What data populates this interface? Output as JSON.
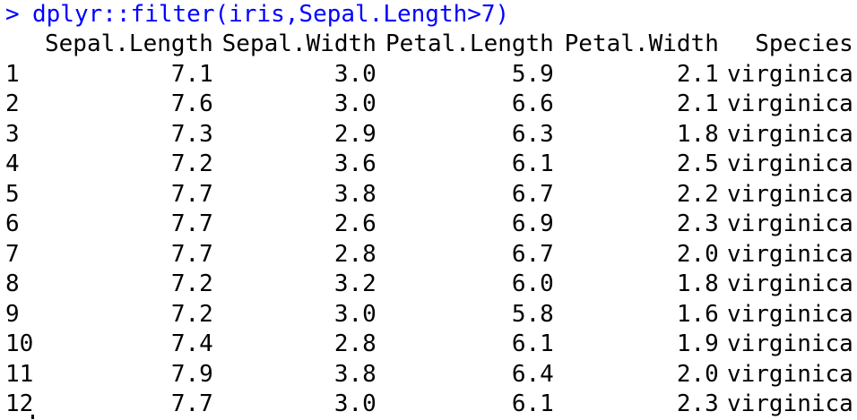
{
  "console": {
    "prompt": ">",
    "command": "dplyr::filter(iris,Sepal.Length>7)",
    "command_color": "#0000ff"
  },
  "table": {
    "headers": [
      "",
      "Sepal.Length",
      "Sepal.Width",
      "Petal.Length",
      "Petal.Width",
      "Species"
    ],
    "rows": [
      [
        "1",
        "7.1",
        "3.0",
        "5.9",
        "2.1",
        "virginica"
      ],
      [
        "2",
        "7.6",
        "3.0",
        "6.6",
        "2.1",
        "virginica"
      ],
      [
        "3",
        "7.3",
        "2.9",
        "6.3",
        "1.8",
        "virginica"
      ],
      [
        "4",
        "7.2",
        "3.6",
        "6.1",
        "2.5",
        "virginica"
      ],
      [
        "5",
        "7.7",
        "3.8",
        "6.7",
        "2.2",
        "virginica"
      ],
      [
        "6",
        "7.7",
        "2.6",
        "6.9",
        "2.3",
        "virginica"
      ],
      [
        "7",
        "7.7",
        "2.8",
        "6.7",
        "2.0",
        "virginica"
      ],
      [
        "8",
        "7.2",
        "3.2",
        "6.0",
        "1.8",
        "virginica"
      ],
      [
        "9",
        "7.2",
        "3.0",
        "5.8",
        "1.6",
        "virginica"
      ],
      [
        "10",
        "7.4",
        "2.8",
        "6.1",
        "1.9",
        "virginica"
      ],
      [
        "11",
        "7.9",
        "3.8",
        "6.4",
        "2.0",
        "virginica"
      ],
      [
        "12",
        "7.7",
        "3.0",
        "6.1",
        "2.3",
        "virginica"
      ]
    ]
  }
}
